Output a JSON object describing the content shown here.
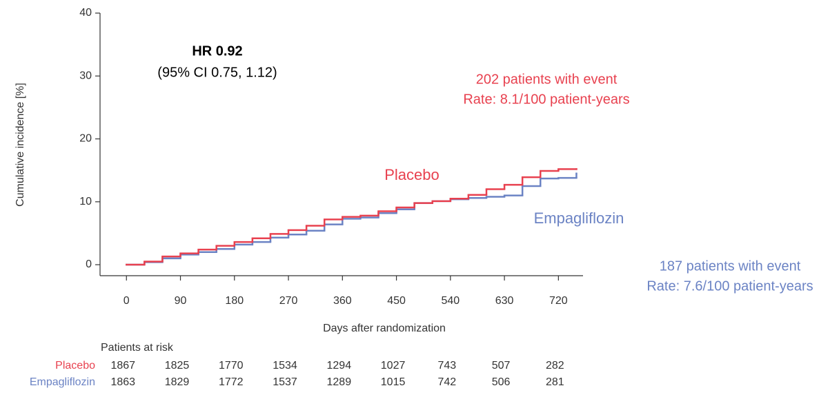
{
  "chart_data": {
    "type": "line",
    "step": true,
    "x_label": "Days after randomization",
    "y_label": "Cumulative incidence [%]",
    "xlim": [
      -44,
      761
    ],
    "ylim": [
      -1.75,
      40
    ],
    "xticks": [
      0,
      90,
      180,
      270,
      360,
      450,
      540,
      630,
      720
    ],
    "yticks": [
      0,
      10,
      20,
      30,
      40
    ],
    "x": [
      0,
      30,
      60,
      90,
      120,
      150,
      180,
      210,
      240,
      270,
      300,
      330,
      360,
      390,
      420,
      450,
      480,
      510,
      540,
      570,
      600,
      630,
      660,
      690,
      720,
      750
    ],
    "series": [
      {
        "name": "Placebo",
        "color": "#e8414f",
        "values": [
          0,
          0.5,
          1.3,
          1.8,
          2.4,
          3.0,
          3.6,
          4.2,
          4.9,
          5.5,
          6.2,
          7.2,
          7.6,
          7.8,
          8.5,
          9.1,
          9.8,
          10.1,
          10.5,
          11.1,
          12.0,
          12.7,
          13.9,
          14.9,
          15.2,
          15.2
        ]
      },
      {
        "name": "Empagliflozin",
        "color": "#6b83c4",
        "values": [
          0,
          0.4,
          1.0,
          1.6,
          2.0,
          2.5,
          3.2,
          3.6,
          4.3,
          4.8,
          5.4,
          6.4,
          7.3,
          7.5,
          8.2,
          8.8,
          9.8,
          10.1,
          10.4,
          10.6,
          10.8,
          11.0,
          12.5,
          13.7,
          13.8,
          14.5
        ]
      }
    ],
    "annotations": [
      {
        "text": "HR 0.92"
      },
      {
        "text": "(95% CI 0.75, 1.12)"
      },
      {
        "text": "202 patients with event"
      },
      {
        "text": "Rate: 8.1/100 patient-years"
      },
      {
        "text": "187 patients with event"
      },
      {
        "text": "Rate: 7.6/100 patient-years"
      }
    ],
    "risk_table": {
      "title": "Patients at risk",
      "rows": [
        [
          1867,
          1825,
          1770,
          1534,
          1294,
          1027,
          743,
          507,
          282
        ],
        [
          1863,
          1829,
          1772,
          1537,
          1289,
          1015,
          742,
          506,
          281
        ]
      ]
    }
  }
}
